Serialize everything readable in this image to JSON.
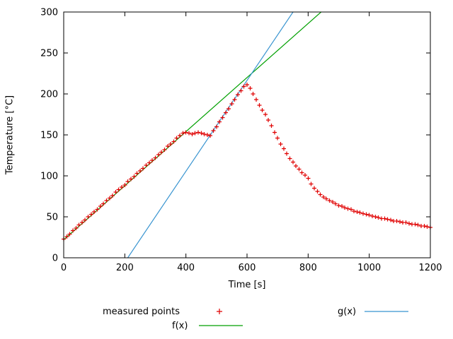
{
  "chart_data": {
    "type": "scatter",
    "title": "",
    "xlabel": "Time [s]",
    "ylabel": "Temperature [°C]",
    "xlim": [
      0,
      1200
    ],
    "ylim": [
      0,
      300
    ],
    "xticks": [
      0,
      200,
      400,
      600,
      800,
      1000,
      1200
    ],
    "yticks": [
      0,
      50,
      100,
      150,
      200,
      250,
      300
    ],
    "grid": false,
    "legend_position": "below",
    "border_color": "#000000",
    "series": [
      {
        "name": "measured points",
        "type": "scatter",
        "marker": "plus",
        "color": "#e00000",
        "points": [
          [
            0,
            23
          ],
          [
            10,
            26
          ],
          [
            20,
            29
          ],
          [
            30,
            33
          ],
          [
            40,
            36
          ],
          [
            50,
            40
          ],
          [
            60,
            43
          ],
          [
            70,
            46
          ],
          [
            80,
            50
          ],
          [
            90,
            53
          ],
          [
            100,
            56
          ],
          [
            110,
            59
          ],
          [
            120,
            63
          ],
          [
            130,
            66
          ],
          [
            140,
            70
          ],
          [
            150,
            73
          ],
          [
            160,
            76
          ],
          [
            170,
            80
          ],
          [
            180,
            83
          ],
          [
            190,
            86
          ],
          [
            200,
            89
          ],
          [
            210,
            93
          ],
          [
            220,
            96
          ],
          [
            230,
            99
          ],
          [
            240,
            103
          ],
          [
            250,
            106
          ],
          [
            260,
            109
          ],
          [
            270,
            113
          ],
          [
            280,
            116
          ],
          [
            290,
            119
          ],
          [
            300,
            122
          ],
          [
            310,
            126
          ],
          [
            320,
            129
          ],
          [
            330,
            132
          ],
          [
            340,
            136
          ],
          [
            350,
            139
          ],
          [
            360,
            142
          ],
          [
            370,
            146
          ],
          [
            380,
            149
          ],
          [
            390,
            152
          ],
          [
            400,
            153
          ],
          [
            410,
            152
          ],
          [
            420,
            151
          ],
          [
            430,
            152
          ],
          [
            440,
            153
          ],
          [
            450,
            152
          ],
          [
            460,
            151
          ],
          [
            470,
            150
          ],
          [
            480,
            149
          ],
          [
            490,
            155
          ],
          [
            500,
            160
          ],
          [
            510,
            166
          ],
          [
            520,
            171
          ],
          [
            530,
            177
          ],
          [
            540,
            182
          ],
          [
            550,
            188
          ],
          [
            560,
            193
          ],
          [
            570,
            199
          ],
          [
            580,
            204
          ],
          [
            590,
            209
          ],
          [
            600,
            211
          ],
          [
            610,
            207
          ],
          [
            620,
            200
          ],
          [
            630,
            193
          ],
          [
            640,
            186
          ],
          [
            650,
            180
          ],
          [
            660,
            175
          ],
          [
            670,
            168
          ],
          [
            680,
            161
          ],
          [
            690,
            153
          ],
          [
            700,
            146
          ],
          [
            710,
            139
          ],
          [
            720,
            133
          ],
          [
            730,
            127
          ],
          [
            740,
            121
          ],
          [
            750,
            117
          ],
          [
            760,
            112
          ],
          [
            770,
            108
          ],
          [
            780,
            104
          ],
          [
            790,
            101
          ],
          [
            800,
            97
          ],
          [
            810,
            90
          ],
          [
            820,
            85
          ],
          [
            830,
            81
          ],
          [
            840,
            77
          ],
          [
            850,
            74
          ],
          [
            860,
            72
          ],
          [
            870,
            70
          ],
          [
            880,
            68
          ],
          [
            890,
            66
          ],
          [
            900,
            64
          ],
          [
            910,
            63
          ],
          [
            920,
            61
          ],
          [
            930,
            60
          ],
          [
            940,
            59
          ],
          [
            950,
            57
          ],
          [
            960,
            56
          ],
          [
            970,
            55
          ],
          [
            980,
            54
          ],
          [
            990,
            53
          ],
          [
            1000,
            52
          ],
          [
            1010,
            51
          ],
          [
            1020,
            50
          ],
          [
            1030,
            49
          ],
          [
            1040,
            48
          ],
          [
            1050,
            48
          ],
          [
            1060,
            47
          ],
          [
            1070,
            46
          ],
          [
            1080,
            45
          ],
          [
            1090,
            45
          ],
          [
            1100,
            44
          ],
          [
            1110,
            43
          ],
          [
            1120,
            43
          ],
          [
            1130,
            42
          ],
          [
            1140,
            41
          ],
          [
            1150,
            41
          ],
          [
            1160,
            40
          ],
          [
            1170,
            39
          ],
          [
            1180,
            39
          ],
          [
            1190,
            38
          ],
          [
            1200,
            37
          ]
        ]
      },
      {
        "name": "f(x)",
        "type": "line",
        "fn": "linear",
        "slope": 0.33,
        "intercept": 22,
        "color": "#00a000"
      },
      {
        "name": "g(x)",
        "type": "line",
        "fn": "linear",
        "slope": 0.5545,
        "intercept": -116.2,
        "color": "#3894d0"
      }
    ]
  }
}
